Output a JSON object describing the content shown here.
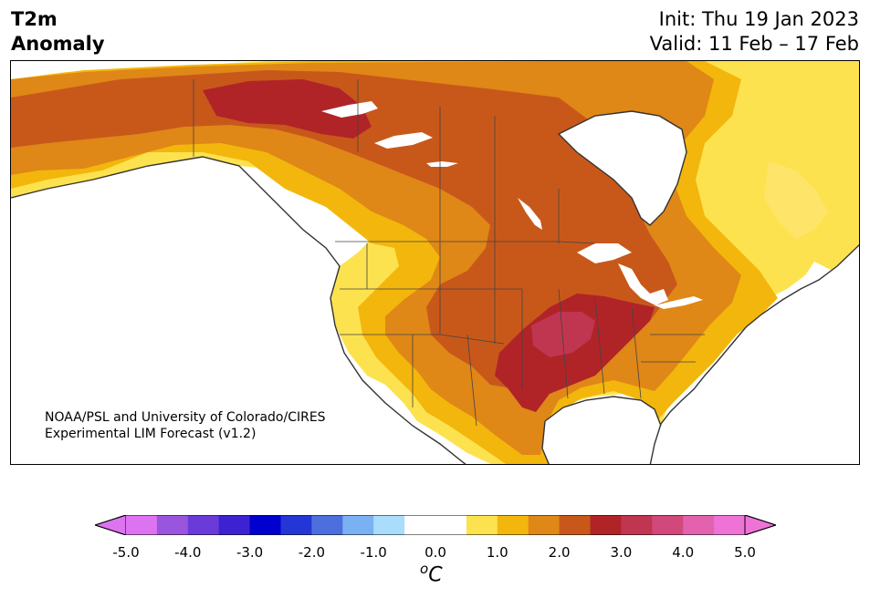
{
  "title": {
    "line1": "T2m",
    "line2": "Anomaly"
  },
  "header": {
    "init": "Init: Thu 19 Jan 2023",
    "valid": "Valid: 11 Feb – 17 Feb"
  },
  "credit": {
    "line1": "NOAA/PSL and University of Colorado/CIRES",
    "line2": "Experimental LIM Forecast (v1.2)"
  },
  "map": {
    "region": "North America",
    "variable": "2-meter temperature anomaly"
  },
  "colorbar": {
    "units_base": "C",
    "units_sup": "o",
    "ticks": [
      "-5.0",
      "-4.0",
      "-3.0",
      "-2.0",
      "-1.0",
      "0.0",
      "1.0",
      "2.0",
      "3.0",
      "4.0",
      "5.0"
    ],
    "colors": [
      "#dd73f0",
      "#9a55de",
      "#6a3bd9",
      "#3c22d1",
      "#0000cf",
      "#2436d6",
      "#4d6fde",
      "#7ab1f2",
      "#aadcfb",
      "#ffffff",
      "#ffffff",
      "#fde24f",
      "#f3b60c",
      "#df8717",
      "#c8581a",
      "#b02428",
      "#c03550",
      "#d0497a",
      "#e262ad",
      "#ef73d7"
    ],
    "under_color": "#dd73f0",
    "over_color": "#ef73d7"
  }
}
